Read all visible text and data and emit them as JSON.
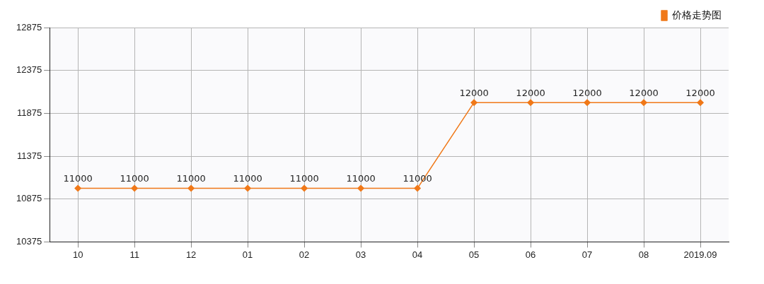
{
  "chart_data": {
    "type": "line",
    "categories": [
      "10",
      "11",
      "12",
      "01",
      "02",
      "03",
      "04",
      "05",
      "06",
      "07",
      "08",
      "2019.09"
    ],
    "series": [
      {
        "name": "价格走势图",
        "color": "#f07818",
        "values": [
          11000,
          11000,
          11000,
          11000,
          11000,
          11000,
          11000,
          12000,
          12000,
          12000,
          12000,
          12000
        ]
      }
    ],
    "ylim": [
      10375,
      12875
    ],
    "yticks": [
      10375,
      10875,
      11375,
      11875,
      12375,
      12875
    ],
    "grid": true,
    "legend": "top right",
    "marker": "diamond",
    "line_style": "solid",
    "data_labels": true
  }
}
